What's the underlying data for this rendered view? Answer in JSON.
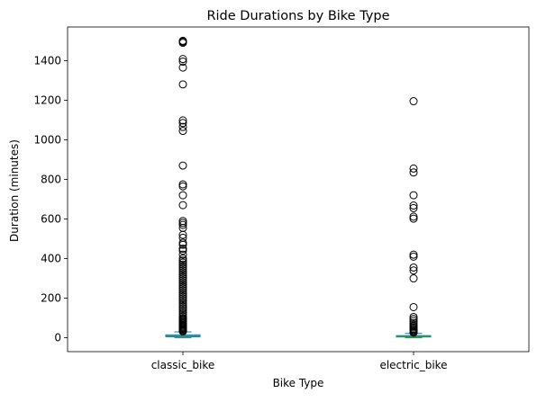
{
  "chart_data": {
    "type": "box",
    "title": "Ride Durations by Bike Type",
    "xlabel": "Bike Type",
    "ylabel": "Duration (minutes)",
    "categories": [
      "classic_bike",
      "electric_bike"
    ],
    "ylim": [
      -70,
      1570
    ],
    "yticks": [
      0,
      200,
      400,
      600,
      800,
      1000,
      1200,
      1400
    ],
    "grid": false,
    "legend": "none",
    "colors": {
      "box": "#1f77b4",
      "median": "#2ca02c",
      "flier": "#000000"
    },
    "series": [
      {
        "category": "classic_bike",
        "box": {
          "whislo": 0,
          "q1": 5,
          "med": 9,
          "q3": 15,
          "whishi": 30
        },
        "fliers": [
          1500,
          1498,
          1495,
          1490,
          1408,
          1395,
          1365,
          1280,
          1098,
          1085,
          1065,
          1045,
          870,
          775,
          765,
          720,
          670,
          590,
          580,
          570,
          555,
          520,
          505,
          480,
          470,
          450,
          440,
          420,
          400,
          390,
          380,
          370,
          360,
          350,
          340,
          330,
          320,
          310,
          300,
          290,
          280,
          270,
          260,
          250,
          240,
          230,
          220,
          210,
          200,
          190,
          180,
          170,
          160,
          150,
          140,
          130,
          120,
          110,
          100,
          95,
          90,
          85,
          80,
          75,
          70,
          65,
          60,
          55,
          50,
          45,
          40,
          35,
          32
        ]
      },
      {
        "category": "electric_bike",
        "box": {
          "whislo": 0,
          "q1": 4,
          "med": 7,
          "q3": 11,
          "whishi": 22
        },
        "fliers": [
          1195,
          855,
          835,
          720,
          668,
          655,
          612,
          602,
          420,
          410,
          355,
          340,
          300,
          155,
          105,
          95,
          85,
          75,
          65,
          58,
          52,
          45,
          40,
          35,
          30,
          26
        ]
      }
    ]
  }
}
